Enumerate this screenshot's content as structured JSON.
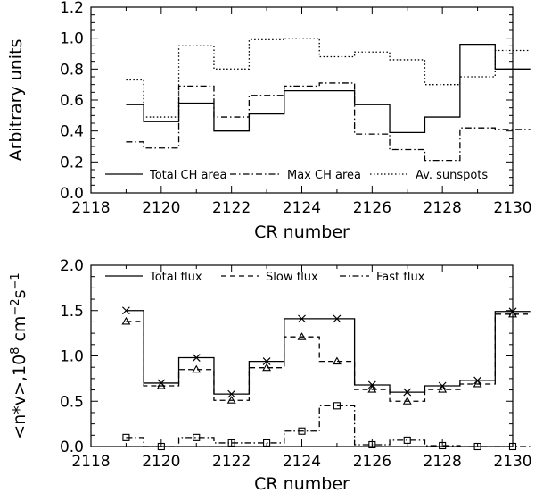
{
  "chart_data": [
    {
      "type": "line",
      "step": true,
      "xlabel": "CR number",
      "ylabel": "Arbitrary units",
      "xlim": [
        2118,
        2130
      ],
      "ylim": [
        0,
        1.2
      ],
      "xticks": [
        "2118",
        "2120",
        "2122",
        "2124",
        "2126",
        "2128",
        "2130"
      ],
      "yticks": [
        "0.0",
        "0.2",
        "0.4",
        "0.6",
        "0.8",
        "1.0",
        "1.2"
      ],
      "x": [
        2119,
        2120,
        2121,
        2122,
        2123,
        2124,
        2125,
        2126,
        2127,
        2128,
        2129,
        2130
      ],
      "legend_position": "bottom",
      "series": [
        {
          "name": "Total CH area",
          "style": "solid",
          "values": [
            0.57,
            0.46,
            0.58,
            0.4,
            0.51,
            0.66,
            0.66,
            0.57,
            0.39,
            0.49,
            0.96,
            0.8
          ]
        },
        {
          "name": "Max CH area",
          "style": "dashdot",
          "values": [
            0.33,
            0.29,
            0.69,
            0.49,
            0.63,
            0.69,
            0.71,
            0.38,
            0.28,
            0.21,
            0.42,
            0.41
          ]
        },
        {
          "name": "Av. sunspots",
          "style": "dotted",
          "values": [
            0.73,
            0.49,
            0.95,
            0.8,
            0.99,
            1.0,
            0.88,
            0.91,
            0.86,
            0.7,
            0.75,
            0.92
          ]
        }
      ]
    },
    {
      "type": "line",
      "step": true,
      "xlabel": "CR number",
      "ylabel": "<n*v>,10^8 cm^-2 s^-1",
      "ylabel_parts": {
        "pre": "<n*v>,10",
        "exp1": "8",
        "mid1": " cm",
        "exp2": "−2",
        "mid2": "s",
        "exp3": "−1"
      },
      "xlim": [
        2118,
        2130
      ],
      "ylim": [
        0,
        2.0
      ],
      "xticks": [
        "2118",
        "2120",
        "2122",
        "2124",
        "2126",
        "2128",
        "2130"
      ],
      "yticks": [
        "0.0",
        "0.5",
        "1.0",
        "1.5",
        "2.0"
      ],
      "x": [
        2119,
        2120,
        2121,
        2122,
        2123,
        2124,
        2125,
        2126,
        2127,
        2128,
        2129,
        2130
      ],
      "legend_position": "top",
      "series": [
        {
          "name": "Total flux",
          "style": "solid",
          "marker": "x",
          "values": [
            1.5,
            0.7,
            0.98,
            0.58,
            0.94,
            1.41,
            1.41,
            0.68,
            0.6,
            0.67,
            0.73,
            1.49
          ]
        },
        {
          "name": "Slow flux",
          "style": "dashed",
          "marker": "triangle",
          "values": [
            1.38,
            0.67,
            0.85,
            0.51,
            0.87,
            1.21,
            0.94,
            0.63,
            0.5,
            0.63,
            0.69,
            1.46
          ]
        },
        {
          "name": "Fast flux",
          "style": "dashdot",
          "marker": "square",
          "values": [
            0.1,
            0.0,
            0.1,
            0.04,
            0.04,
            0.17,
            0.45,
            0.02,
            0.07,
            0.01,
            0.0,
            0.0
          ]
        }
      ]
    }
  ]
}
